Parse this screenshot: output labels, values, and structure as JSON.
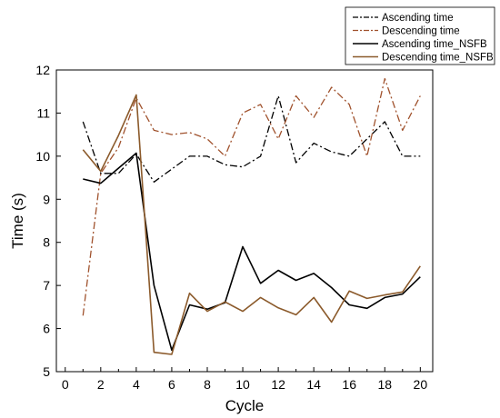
{
  "chart_data": {
    "type": "line",
    "xlabel": "Cycle",
    "ylabel": "Time (s)",
    "xlim": [
      -0.5,
      20.7
    ],
    "ylim": [
      5,
      12
    ],
    "xticks": [
      0,
      2,
      4,
      6,
      8,
      10,
      12,
      14,
      16,
      18,
      20
    ],
    "yticks": [
      5,
      6,
      7,
      8,
      9,
      10,
      11,
      12
    ],
    "grid": false,
    "legend_position": "top-right",
    "x": [
      1,
      2,
      3,
      4,
      5,
      6,
      7,
      8,
      9,
      10,
      11,
      12,
      13,
      14,
      15,
      16,
      17,
      18,
      19,
      20
    ],
    "series": [
      {
        "name": "Ascending time",
        "color": "#000000",
        "dash": "dashdot",
        "values": [
          10.8,
          9.6,
          9.6,
          10.05,
          9.4,
          9.7,
          10.0,
          10.0,
          9.8,
          9.75,
          10.0,
          11.4,
          9.85,
          10.3,
          10.1,
          10.0,
          10.4,
          10.8,
          10.0,
          10.0
        ]
      },
      {
        "name": "Descending time",
        "color": "#a0522d",
        "dash": "dashdot",
        "values": [
          6.3,
          9.6,
          10.2,
          11.35,
          10.6,
          10.5,
          10.55,
          10.4,
          10.0,
          11.0,
          11.2,
          10.4,
          11.4,
          10.9,
          11.6,
          11.2,
          10.0,
          11.8,
          10.6,
          11.4
        ]
      },
      {
        "name": "Ascending time_NSFB",
        "color": "#000000",
        "dash": "solid",
        "values": [
          9.47,
          9.37,
          9.72,
          10.07,
          7.0,
          5.5,
          6.55,
          6.45,
          6.6,
          7.9,
          7.05,
          7.35,
          7.12,
          7.28,
          6.95,
          6.55,
          6.47,
          6.72,
          6.8,
          7.2
        ]
      },
      {
        "name": "Descending time_NSFB",
        "color": "#8b5a2b",
        "dash": "solid",
        "values": [
          10.15,
          9.65,
          10.48,
          11.42,
          5.45,
          5.4,
          6.82,
          6.4,
          6.62,
          6.4,
          6.72,
          6.48,
          6.32,
          6.72,
          6.15,
          6.87,
          6.7,
          6.78,
          6.85,
          7.45
        ]
      }
    ]
  }
}
